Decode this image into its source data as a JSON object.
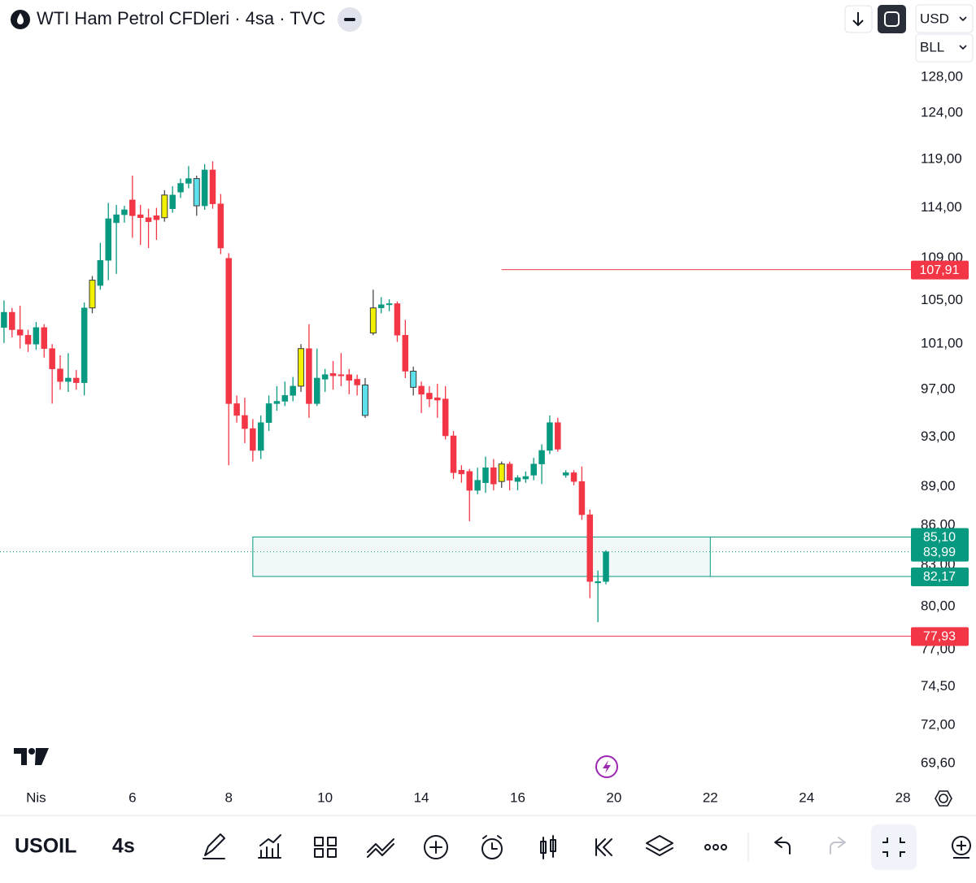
{
  "header": {
    "title": "WTI Ham Petrol CFDleri · 4sa · TVC",
    "currency": "USD",
    "unit": "BLL"
  },
  "chart_data": {
    "type": "candlestick",
    "log_scale": true,
    "x": [
      0,
      1,
      2,
      3,
      4,
      5,
      6,
      7,
      8,
      9,
      10,
      11,
      12,
      13,
      14,
      15,
      16,
      17,
      18,
      19,
      20,
      21,
      22,
      23,
      24,
      25,
      26,
      27,
      28,
      29,
      30,
      31,
      32,
      33,
      34,
      35,
      36,
      37,
      38,
      39,
      40,
      41,
      42,
      43,
      44,
      45,
      46,
      47,
      48,
      49,
      50,
      51,
      52,
      53,
      54,
      55,
      56,
      57,
      58,
      59,
      60,
      61,
      62,
      63,
      64,
      65,
      66,
      67,
      68,
      69,
      70,
      71,
      72,
      73,
      74,
      75
    ],
    "open": [
      102.5,
      103.9,
      102.3,
      101.8,
      101.0,
      102.5,
      100.6,
      98.8,
      97.7,
      98.0,
      97.6,
      104.3,
      106.4,
      108.8,
      112.5,
      113.3,
      114.8,
      113.3,
      113.0,
      113.2,
      113.0,
      113.9,
      115.6,
      116.5,
      117.0,
      114.2,
      117.9,
      114.4,
      109.0,
      95.8,
      94.8,
      93.7,
      91.9,
      94.2,
      95.8,
      96.0,
      96.5,
      97.3,
      100.6,
      95.8,
      97.9,
      98.4,
      98.3,
      98.3,
      97.9,
      97.4,
      102.0,
      104.3,
      104.6,
      104.7,
      101.8,
      98.6,
      97.3,
      96.7,
      96.3,
      96.2,
      93.1,
      90.3,
      90.2,
      88.7,
      89.3,
      90.5,
      89.4,
      90.8,
      89.4,
      89.6,
      89.9,
      90.8,
      91.9,
      94.2,
      89.9,
      90.1,
      89.4,
      86.8,
      81.7,
      81.8
    ],
    "high": [
      105.0,
      104.3,
      104.5,
      102.3,
      103.0,
      102.8,
      101.0,
      100.0,
      100.2,
      98.7,
      104.8,
      107.3,
      110.5,
      114.5,
      114.3,
      114.2,
      117.3,
      114.3,
      113.9,
      114.0,
      115.8,
      116.2,
      117.0,
      118.3,
      117.3,
      118.5,
      118.8,
      115.4,
      109.5,
      96.5,
      96.3,
      94.5,
      94.8,
      96.5,
      97.3,
      97.7,
      98.1,
      101.0,
      102.8,
      100.6,
      98.8,
      99.5,
      100.2,
      98.8,
      98.3,
      98.0,
      106.0,
      105.3,
      105.1,
      104.9,
      103.2,
      99.0,
      97.7,
      97.3,
      97.5,
      97.3,
      93.5,
      90.7,
      90.4,
      90.5,
      91.4,
      91.2,
      91.0,
      91.0,
      89.9,
      90.2,
      91.3,
      92.4,
      94.8,
      94.6,
      90.3,
      90.3,
      90.6,
      87.2,
      82.6,
      84.1
    ],
    "low": [
      101.1,
      101.6,
      100.6,
      100.3,
      100.5,
      99.8,
      95.8,
      97.0,
      96.8,
      97.0,
      96.5,
      103.8,
      106.0,
      106.9,
      107.5,
      112.5,
      111.0,
      110.3,
      110.0,
      110.8,
      112.6,
      113.5,
      115.0,
      116.0,
      113.2,
      113.8,
      113.9,
      109.4,
      90.7,
      94.2,
      92.5,
      91.0,
      91.2,
      93.5,
      95.2,
      95.6,
      96.0,
      96.8,
      94.6,
      95.6,
      96.8,
      97.0,
      97.3,
      96.6,
      96.5,
      94.6,
      101.8,
      103.8,
      104.0,
      101.2,
      98.0,
      96.5,
      95.0,
      95.5,
      94.6,
      92.8,
      89.6,
      89.3,
      86.3,
      88.4,
      88.5,
      88.7,
      88.9,
      88.7,
      88.7,
      89.3,
      89.5,
      89.2,
      91.6,
      91.8,
      89.7,
      89.1,
      86.4,
      80.6,
      78.9,
      81.6
    ],
    "close": [
      103.9,
      102.3,
      101.8,
      101.0,
      102.5,
      100.6,
      98.8,
      97.7,
      98.0,
      97.6,
      104.3,
      106.9,
      108.8,
      112.9,
      113.3,
      113.8,
      113.2,
      113.0,
      112.6,
      112.8,
      115.3,
      115.3,
      116.5,
      117.0,
      114.2,
      117.9,
      114.4,
      110.0,
      95.8,
      94.8,
      93.7,
      91.9,
      94.2,
      95.8,
      96.0,
      96.5,
      97.3,
      100.6,
      95.8,
      98.0,
      98.3,
      98.2,
      98.2,
      97.8,
      97.4,
      94.8,
      104.3,
      104.6,
      104.7,
      101.8,
      98.6,
      97.2,
      96.6,
      96.2,
      96.1,
      93.1,
      90.1,
      90.0,
      88.7,
      89.5,
      90.5,
      89.2,
      90.8,
      89.5,
      89.7,
      89.8,
      90.8,
      91.9,
      94.2,
      92.0,
      90.1,
      89.4,
      86.8,
      81.8,
      81.8,
      83.99
    ],
    "colors": [
      "#089981",
      "#f23645",
      "#f23645",
      "#f23645",
      "#089981",
      "#f23645",
      "#f23645",
      "#f23645",
      "#089981",
      "#f23645",
      "#089981",
      "#f0f000",
      "#089981",
      "#089981",
      "#089981",
      "#089981",
      "#f23645",
      "#f23645",
      "#f23645",
      "#f23645",
      "#f0f000",
      "#089981",
      "#089981",
      "#089981",
      "#5ce1ec",
      "#089981",
      "#f23645",
      "#f23645",
      "#f23645",
      "#f23645",
      "#f23645",
      "#f23645",
      "#089981",
      "#089981",
      "#089981",
      "#089981",
      "#089981",
      "#f0f000",
      "#f23645",
      "#089981",
      "#089981",
      "#f23645",
      "#f23645",
      "#f23645",
      "#f23645",
      "#5ce1ec",
      "#f0f000",
      "#089981",
      "#089981",
      "#f23645",
      "#f23645",
      "#5ce1ec",
      "#f23645",
      "#f23645",
      "#f23645",
      "#f23645",
      "#f23645",
      "#f23645",
      "#f23645",
      "#089981",
      "#089981",
      "#f23645",
      "#f0f000",
      "#f23645",
      "#089981",
      "#089981",
      "#089981",
      "#089981",
      "#089981",
      "#f23645",
      "#089981",
      "#f23645",
      "#f23645",
      "#f23645",
      "#089981",
      "#089981"
    ],
    "xlim": [
      -0.5,
      113
    ],
    "xticks": [
      {
        "value": 4,
        "label": "Nis"
      },
      {
        "value": 16,
        "label": "6"
      },
      {
        "value": 28,
        "label": "8"
      },
      {
        "value": 40,
        "label": "10"
      },
      {
        "value": 52,
        "label": "14"
      },
      {
        "value": 64,
        "label": "16"
      },
      {
        "value": 76,
        "label": "20"
      },
      {
        "value": 88,
        "label": "22"
      },
      {
        "value": 100,
        "label": "24"
      },
      {
        "value": 112,
        "label": "28"
      }
    ],
    "ylim": [
      68.3,
      133.2
    ],
    "yticks": [
      {
        "value": 128,
        "label": "128,00"
      },
      {
        "value": 124,
        "label": "124,00"
      },
      {
        "value": 119,
        "label": "119,00"
      },
      {
        "value": 114,
        "label": "114,00"
      },
      {
        "value": 109,
        "label": "109,00"
      },
      {
        "value": 105,
        "label": "105,00"
      },
      {
        "value": 101,
        "label": "101,00"
      },
      {
        "value": 97,
        "label": "97,00"
      },
      {
        "value": 93,
        "label": "93,00"
      },
      {
        "value": 89,
        "label": "89,00"
      },
      {
        "value": 86,
        "label": "86,00"
      },
      {
        "value": 83,
        "label": "83,00"
      },
      {
        "value": 80,
        "label": "80,00"
      },
      {
        "value": 77,
        "label": "77,00"
      },
      {
        "value": 74.5,
        "label": "74,50"
      },
      {
        "value": 72,
        "label": "72,00"
      },
      {
        "value": 69.6,
        "label": "69,60"
      }
    ],
    "levels": [
      {
        "value": 107.91,
        "label": "107,91",
        "color": "#f23645",
        "x_start": 62
      },
      {
        "value": 77.93,
        "label": "77,93",
        "color": "#f23645",
        "x_start": 31
      }
    ],
    "zone": {
      "high": 85.1,
      "high_label": "85,10",
      "low": 82.17,
      "low_label": "82,17",
      "x_start": 31,
      "x_end": 88,
      "color": "#089981"
    },
    "last_price": {
      "value": 83.99,
      "label": "83,99",
      "color": "#089981"
    }
  },
  "footer": {
    "symbol": "USOIL",
    "interval": "4s"
  }
}
